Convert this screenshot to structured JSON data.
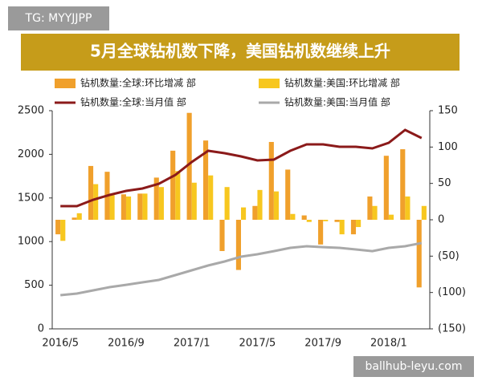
{
  "watermark_top": "TG: MYYJJPP",
  "watermark_bottom": "ballhub-leyu.com",
  "chart_data": {
    "type": "combo",
    "title": "5月全球钻机数下降，美国钻机数继续上升",
    "categories": [
      "2016/5",
      null,
      null,
      null,
      "2016/9",
      null,
      null,
      null,
      "2017/1",
      null,
      null,
      null,
      "2017/5",
      null,
      null,
      null,
      "2017/9",
      null,
      null,
      null,
      "2018/1",
      null,
      null
    ],
    "ylim": [
      0,
      2500
    ],
    "yticks": [
      0,
      500,
      1000,
      1500,
      2000,
      2500
    ],
    "y2lim": [
      -150,
      150
    ],
    "y2ticks": [
      {
        "value": -150,
        "label": "(150)"
      },
      {
        "value": -100,
        "label": "(100)"
      },
      {
        "value": -50,
        "label": "(50)"
      },
      0,
      50,
      100,
      150
    ],
    "series": [
      {
        "name": "钻机数量:全球:环比增减 部",
        "type": "bar",
        "axis": "y2",
        "color": "#f0a02c",
        "values": [
          -20,
          3,
          74,
          66,
          35,
          36,
          58,
          95,
          147,
          109,
          -43,
          -69,
          19,
          107,
          69,
          6,
          -34,
          -3,
          -20,
          32,
          88,
          97,
          -93
        ]
      },
      {
        "name": "钻机数量:美国:环比增减 部",
        "type": "bar",
        "axis": "y2",
        "color": "#f7c71f",
        "values": [
          -29,
          9,
          49,
          34,
          32,
          36,
          45,
          67,
          51,
          61,
          45,
          17,
          41,
          39,
          8,
          -3,
          -2,
          -20,
          -10,
          19,
          7,
          32,
          19
        ]
      },
      {
        "name": "钻机数量:全球:当月值 部",
        "type": "line",
        "axis": "y",
        "color": "#8b1a1a",
        "values": [
          1406,
          1406,
          1480,
          1535,
          1581,
          1608,
          1663,
          1764,
          1912,
          2040,
          2013,
          1976,
          1930,
          1939,
          2040,
          2114,
          2114,
          2086,
          2086,
          2068,
          2132,
          2279,
          2187
        ]
      },
      {
        "name": "钻机数量:美国:当月值 部",
        "type": "line",
        "axis": "y",
        "color": "#a9a9a9",
        "values": [
          386,
          404,
          441,
          478,
          505,
          533,
          561,
          616,
          671,
          726,
          772,
          827,
          855,
          891,
          928,
          947,
          937,
          928,
          910,
          891,
          928,
          947,
          983
        ]
      }
    ]
  }
}
